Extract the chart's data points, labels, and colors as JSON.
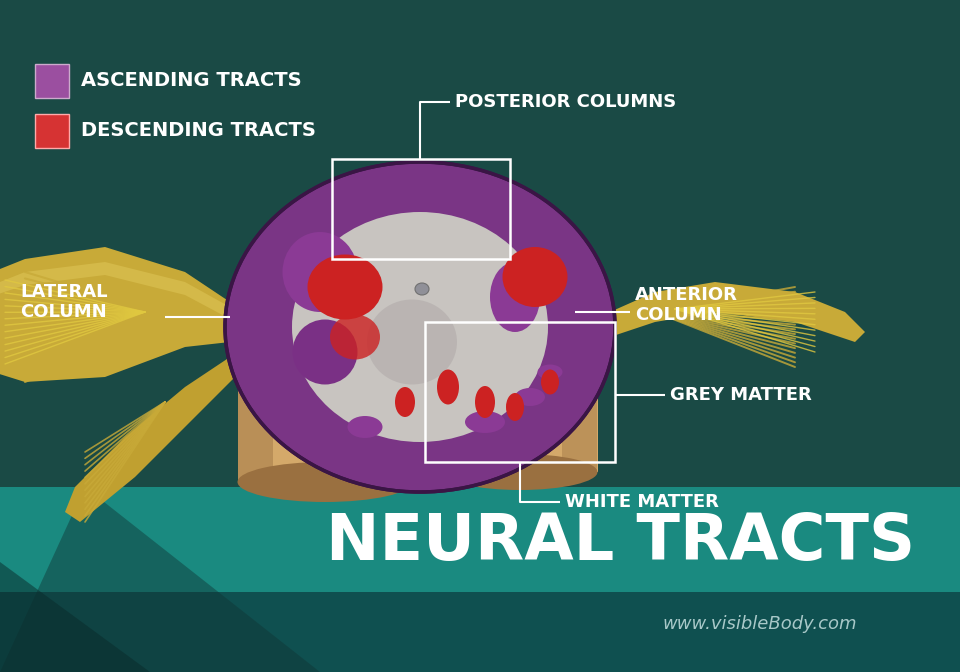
{
  "bg_color": "#1a4a45",
  "teal_banner_color": "#1a8a80",
  "teal_banner_mid": "#157575",
  "teal_banner_dark": "#0f5050",
  "title": "NEURAL TRACTS",
  "subtitle": "www.visibleBody.com",
  "legend_ascending_color": "#9b4fa0",
  "legend_descending_color": "#d63333",
  "legend_ascending_label": "ASCENDING TRACTS",
  "legend_descending_label": "DESCENDING TRACTS",
  "label_fontsize": 12,
  "title_fontsize": 46,
  "subtitle_fontsize": 13,
  "cylinder_tan": "#d4a96a",
  "cylinder_tan_dark": "#9a7040",
  "cylinder_tan_mid": "#c49050",
  "purple_outer": "#7a3585",
  "purple_mid": "#8a4595",
  "grey_matter": "#c8c4c0",
  "grey_matter_dark": "#a0989a",
  "red_tract": "#cc2222",
  "nerve_yellow": "#d4b840",
  "nerve_gold": "#b89a20",
  "nerve_light": "#e8d060"
}
